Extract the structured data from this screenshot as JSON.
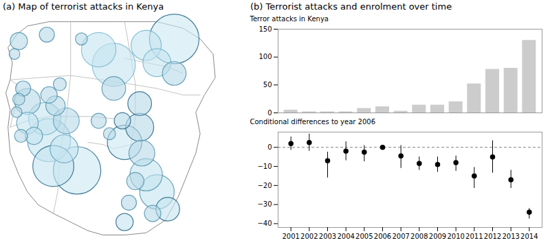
{
  "chart_data": [
    {
      "type": "map",
      "title": "(a) Map of terrorist attacks in Kenya",
      "outline_color": "#888888",
      "interior_color": "#aaaaaa",
      "outline": [
        [
          0.05,
          0.93
        ],
        [
          0.1,
          0.97
        ],
        [
          0.2,
          0.99
        ],
        [
          0.35,
          0.99
        ],
        [
          0.5,
          0.99
        ],
        [
          0.6,
          0.99
        ],
        [
          0.7,
          0.99
        ],
        [
          0.82,
          0.96
        ],
        [
          0.9,
          0.91
        ],
        [
          0.96,
          0.84
        ],
        [
          0.97,
          0.73
        ],
        [
          0.92,
          0.65
        ],
        [
          0.88,
          0.57
        ],
        [
          0.9,
          0.47
        ],
        [
          0.88,
          0.38
        ],
        [
          0.84,
          0.28
        ],
        [
          0.8,
          0.18
        ],
        [
          0.74,
          0.07
        ],
        [
          0.65,
          0.01
        ],
        [
          0.55,
          0.0
        ],
        [
          0.45,
          0.0
        ],
        [
          0.38,
          0.02
        ],
        [
          0.3,
          0.06
        ],
        [
          0.22,
          0.1
        ],
        [
          0.15,
          0.14
        ],
        [
          0.1,
          0.2
        ],
        [
          0.06,
          0.28
        ],
        [
          0.02,
          0.38
        ],
        [
          0.01,
          0.5
        ],
        [
          0.02,
          0.58
        ],
        [
          0.0,
          0.66
        ],
        [
          0.02,
          0.72
        ],
        [
          0.03,
          0.8
        ],
        [
          0.01,
          0.87
        ],
        [
          0.05,
          0.93
        ]
      ],
      "interior_lines": [
        [
          [
            0.02,
            0.72
          ],
          [
            0.15,
            0.73
          ],
          [
            0.3,
            0.74
          ],
          [
            0.45,
            0.72
          ],
          [
            0.58,
            0.7
          ],
          [
            0.7,
            0.68
          ],
          [
            0.82,
            0.65
          ],
          [
            0.9,
            0.65
          ]
        ],
        [
          [
            0.3,
            0.99
          ],
          [
            0.3,
            0.74
          ],
          [
            0.28,
            0.55
          ],
          [
            0.25,
            0.38
          ],
          [
            0.24,
            0.2
          ],
          [
            0.22,
            0.1
          ]
        ],
        [
          [
            0.55,
            0.99
          ],
          [
            0.58,
            0.82
          ],
          [
            0.6,
            0.7
          ],
          [
            0.6,
            0.55
          ],
          [
            0.58,
            0.42
          ]
        ],
        [
          [
            0.02,
            0.5
          ],
          [
            0.1,
            0.53
          ],
          [
            0.2,
            0.55
          ],
          [
            0.28,
            0.55
          ],
          [
            0.4,
            0.55
          ],
          [
            0.5,
            0.54
          ]
        ],
        [
          [
            0.55,
            0.82
          ],
          [
            0.65,
            0.8
          ],
          [
            0.75,
            0.78
          ],
          [
            0.82,
            0.75
          ]
        ],
        [
          [
            0.38,
            0.43
          ],
          [
            0.45,
            0.42
          ],
          [
            0.5,
            0.4
          ],
          [
            0.58,
            0.42
          ]
        ],
        [
          [
            0.05,
            0.7
          ],
          [
            0.02,
            0.72
          ]
        ],
        [
          [
            0.05,
            0.7
          ],
          [
            0.06,
            0.65
          ],
          [
            0.04,
            0.58
          ],
          [
            0.02,
            0.5
          ]
        ]
      ],
      "circles": [
        {
          "x": 0.78,
          "y": 0.91,
          "r": 0.115,
          "color": "#cce8f2",
          "edge_color": "#1a5f80"
        },
        {
          "x": 0.33,
          "y": 0.3,
          "r": 0.11,
          "color": "#cce8f2",
          "edge_color": "#1a5f80"
        },
        {
          "x": 0.5,
          "y": 0.79,
          "r": 0.1,
          "color": "#c5e4f0",
          "edge_color": "#7ab5cc"
        },
        {
          "x": 0.2,
          "y": 0.44,
          "r": 0.1,
          "color": "#c5e4f0",
          "edge_color": "#5a9ab5"
        },
        {
          "x": 0.22,
          "y": 0.32,
          "r": 0.095,
          "color": "#c5e4f0",
          "edge_color": "#1a5f80"
        },
        {
          "x": 0.43,
          "y": 0.86,
          "r": 0.08,
          "color": "#c5e4f0",
          "edge_color": "#7ab5cc"
        },
        {
          "x": 0.55,
          "y": 0.43,
          "r": 0.08,
          "color": "#cce8f2",
          "edge_color": "#1a5f80"
        },
        {
          "x": 0.7,
          "y": 0.2,
          "r": 0.08,
          "color": "#c5e4f0",
          "edge_color": "#4a8fa8"
        },
        {
          "x": 0.18,
          "y": 0.54,
          "r": 0.075,
          "color": "#c5e4f0",
          "edge_color": "#6ab0c8"
        },
        {
          "x": 0.65,
          "y": 0.28,
          "r": 0.075,
          "color": "#c5e4f0",
          "edge_color": "#4a8fa8"
        },
        {
          "x": 0.65,
          "y": 0.88,
          "r": 0.07,
          "color": "#c5e4f0",
          "edge_color": "#6ab0c8"
        },
        {
          "x": 0.7,
          "y": 0.8,
          "r": 0.065,
          "color": "#c5e4f0",
          "edge_color": "#6ab0c8"
        },
        {
          "x": 0.27,
          "y": 0.4,
          "r": 0.065,
          "color": "#c5e4f0",
          "edge_color": "#5a9ab5"
        },
        {
          "x": 0.62,
          "y": 0.5,
          "r": 0.065,
          "color": "#b8d8e8",
          "edge_color": "#1a5f80"
        },
        {
          "x": 0.1,
          "y": 0.62,
          "r": 0.06,
          "color": "#b8d8e8",
          "edge_color": "#4a8fa8"
        },
        {
          "x": 0.28,
          "y": 0.53,
          "r": 0.06,
          "color": "#b8d8e8",
          "edge_color": "#5a9ab5"
        },
        {
          "x": 0.63,
          "y": 0.38,
          "r": 0.06,
          "color": "#b8d8e8",
          "edge_color": "#4a8fa8"
        },
        {
          "x": 0.5,
          "y": 0.68,
          "r": 0.055,
          "color": "#b8d8e8",
          "edge_color": "#4a8fa8"
        },
        {
          "x": 0.78,
          "y": 0.75,
          "r": 0.055,
          "color": "#b8d8e8",
          "edge_color": "#4a8fa8"
        },
        {
          "x": 0.62,
          "y": 0.61,
          "r": 0.055,
          "color": "#b8d8e8",
          "edge_color": "#1a5f80"
        },
        {
          "x": 0.75,
          "y": 0.12,
          "r": 0.055,
          "color": "#c5e4f0",
          "edge_color": "#1a5f80"
        },
        {
          "x": 0.1,
          "y": 0.52,
          "r": 0.05,
          "color": "#c5e4f0",
          "edge_color": "#5a9ab5"
        },
        {
          "x": 0.23,
          "y": 0.6,
          "r": 0.045,
          "color": "#b8d8e8",
          "edge_color": "#4a8fa8"
        },
        {
          "x": 0.06,
          "y": 0.9,
          "r": 0.04,
          "color": "#b8d8e8",
          "edge_color": "#4a8fa8"
        },
        {
          "x": 0.13,
          "y": 0.46,
          "r": 0.04,
          "color": "#c5e4f0",
          "edge_color": "#4a8fa8"
        },
        {
          "x": 0.6,
          "y": 0.25,
          "r": 0.04,
          "color": "#b8d8e8",
          "edge_color": "#4a8fa8"
        },
        {
          "x": 0.55,
          "y": 0.06,
          "r": 0.04,
          "color": "#c5e4f0",
          "edge_color": "#1a5f80"
        },
        {
          "x": 0.2,
          "y": 0.65,
          "r": 0.038,
          "color": "#b8d8e8",
          "edge_color": "#4a8fa8"
        },
        {
          "x": 0.54,
          "y": 0.53,
          "r": 0.038,
          "color": "#b8d8e8",
          "edge_color": "#1a5f80"
        },
        {
          "x": 0.68,
          "y": 0.1,
          "r": 0.038,
          "color": "#b8d8e8",
          "edge_color": "#4a8fa8"
        },
        {
          "x": 0.19,
          "y": 0.93,
          "r": 0.035,
          "color": "#b8d8e8",
          "edge_color": "#4a8fa8"
        },
        {
          "x": 0.08,
          "y": 0.68,
          "r": 0.035,
          "color": "#b8d8e8",
          "edge_color": "#4a8fa8"
        },
        {
          "x": 0.43,
          "y": 0.53,
          "r": 0.035,
          "color": "#b8d8e8",
          "edge_color": "#4a8fa8"
        },
        {
          "x": 0.57,
          "y": 0.15,
          "r": 0.035,
          "color": "#b8d8e8",
          "edge_color": "#4a8fa8"
        },
        {
          "x": 0.07,
          "y": 0.46,
          "r": 0.03,
          "color": "#b8d8e8",
          "edge_color": "#4a8fa8"
        },
        {
          "x": 0.25,
          "y": 0.7,
          "r": 0.03,
          "color": "#b8d8e8",
          "edge_color": "#4a8fa8"
        },
        {
          "x": 0.35,
          "y": 0.91,
          "r": 0.028,
          "color": "#b8d8e8",
          "edge_color": "#4a8fa8"
        },
        {
          "x": 0.06,
          "y": 0.63,
          "r": 0.028,
          "color": "#b8d8e8",
          "edge_color": "#4a8fa8"
        },
        {
          "x": 0.48,
          "y": 0.47,
          "r": 0.028,
          "color": "#b8d8e8",
          "edge_color": "#4a8fa8"
        },
        {
          "x": 0.04,
          "y": 0.84,
          "r": 0.025,
          "color": "#b8d8e8",
          "edge_color": "#4a8fa8"
        },
        {
          "x": 0.05,
          "y": 0.57,
          "r": 0.025,
          "color": "#b8d8e8",
          "edge_color": "#4a8fa8"
        }
      ]
    },
    {
      "type": "bar",
      "title": "(b) Terrorist attacks and enrolment over time",
      "x": [
        2001,
        2002,
        2003,
        2004,
        2005,
        2006,
        2007,
        2008,
        2009,
        2010,
        2011,
        2012,
        2013,
        2014
      ],
      "values": [
        5,
        2,
        2,
        2,
        8,
        11,
        3,
        14,
        14,
        20,
        52,
        78,
        80,
        130
      ],
      "color": "#cccccc",
      "xlim": [
        2000.3,
        2014.7
      ],
      "ylim": [
        0,
        150
      ],
      "yticks": [
        0,
        50,
        100,
        150
      ],
      "ylabel": "Terror attacks in Kenya",
      "tick_labels": "y"
    },
    {
      "type": "errorbar",
      "x": [
        2001,
        2002,
        2003,
        2004,
        2005,
        2006,
        2007,
        2008,
        2009,
        2010,
        2011,
        2012,
        2013,
        2014
      ],
      "values": [
        2.0,
        2.5,
        -7.0,
        -2.0,
        -2.5,
        0.0,
        -4.5,
        -8.5,
        -9.0,
        -8.0,
        -15.0,
        -5.0,
        -17.0,
        -34.0
      ],
      "errors_lo": [
        3.5,
        4.5,
        9.0,
        5.0,
        5.0,
        0.3,
        6.5,
        3.5,
        4.0,
        4.5,
        6.5,
        8.5,
        4.5,
        3.5
      ],
      "errors_hi": [
        3.5,
        4.5,
        4.5,
        5.0,
        3.5,
        0.3,
        5.5,
        3.5,
        4.0,
        3.5,
        4.5,
        8.5,
        5.0,
        2.0
      ],
      "color": "black",
      "marker": "circle",
      "xlim": [
        2000.3,
        2014.7
      ],
      "xticks": [
        2001,
        2002,
        2003,
        2004,
        2005,
        2006,
        2007,
        2008,
        2009,
        2010,
        2011,
        2012,
        2013,
        2014
      ],
      "ylim": [
        -42,
        8
      ],
      "yticks": [
        -40,
        -30,
        -20,
        -10,
        0
      ],
      "ylabel": "Conditional differences to year 2006",
      "reference_line": {
        "value": 0,
        "line_style": "dashed",
        "color": "gray"
      }
    }
  ]
}
